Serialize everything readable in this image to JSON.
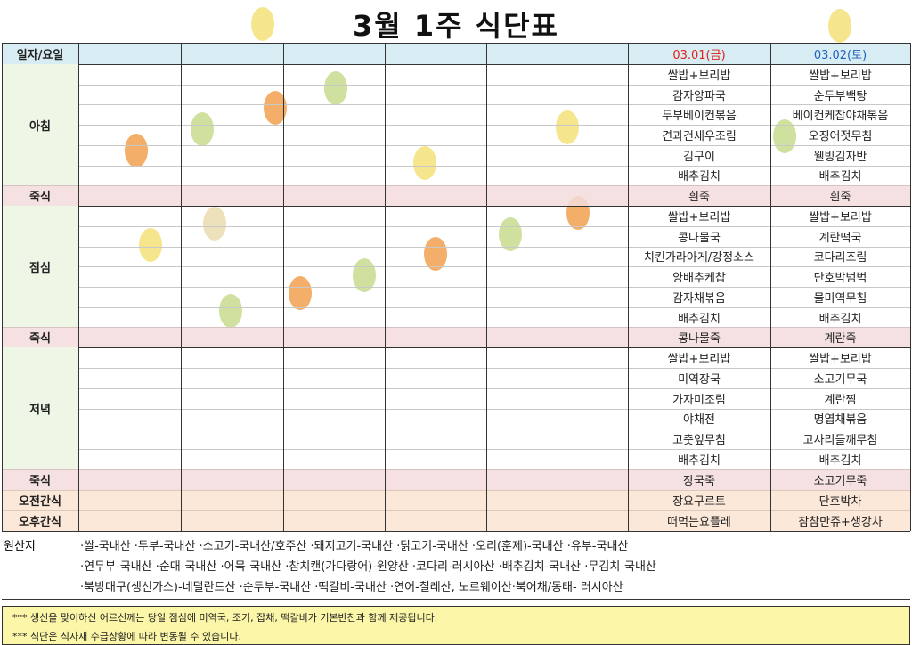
{
  "header": {
    "title": "3월 1주 식단표"
  },
  "table": {
    "date_label": "일자/요일",
    "days": [
      "03.01(금)",
      "03.02(토)"
    ],
    "sections": [
      {
        "label": "아침",
        "days": [
          [
            "쌀밥+보리밥",
            "감자양파국",
            "두부베이컨볶음",
            "견과건새우조림",
            "김구이",
            "배추김치"
          ],
          [
            "쌀밥+보리밥",
            "순두부백탕",
            "베이컨케찹야채볶음",
            "오징어젓무침",
            "웰빙김자반",
            "배추김치"
          ]
        ]
      },
      {
        "label": "죽식",
        "days": [
          "흰죽",
          "흰죽"
        ]
      },
      {
        "label": "점심",
        "days": [
          [
            "쌀밥+보리밥",
            "콩나물국",
            "치킨가라아게/강정소스",
            "양배추케찹",
            "감자채볶음",
            "배추김치"
          ],
          [
            "쌀밥+보리밥",
            "계란떡국",
            "코다리조림",
            "단호박범벅",
            "물미역무침",
            "배추김치"
          ]
        ]
      },
      {
        "label": "죽식",
        "days": [
          "콩나물죽",
          "계란죽"
        ]
      },
      {
        "label": "저녁",
        "days": [
          [
            "쌀밥+보리밥",
            "미역장국",
            "가자미조림",
            "야채전",
            "고춧잎무침",
            "배추김치"
          ],
          [
            "쌀밥+보리밥",
            "소고기무국",
            "계란찜",
            "명엽채볶음",
            "고사리들깨무침",
            "배추김치"
          ]
        ]
      },
      {
        "label": "죽식",
        "days": [
          "장국죽",
          "소고기무죽"
        ]
      },
      {
        "label": "오전간식",
        "days": [
          "장요구르트",
          "단호박차"
        ]
      },
      {
        "label": "오후간식",
        "days": [
          "떠먹는요플레",
          "참참만쥬+생강차"
        ]
      }
    ]
  },
  "origin": {
    "label": "원산지",
    "lines": [
      "·쌀-국내산 ·두부-국내산 ·소고기-국내산/호주산 ·돼지고기-국내산 ·닭고기-국내산 ·오리(훈제)-국내산 ·유부-국내산",
      "·연두부-국내산 ·순대-국내산 ·어묵-국내산 ·참치캔(가다랑어)-원양산 ·코다리-러시아산 ·배추김치-국내산 ·무김치-국내산",
      "·북방대구(생선가스)-네덜란드산 ·순두부-국내산 ·떡갈비-국내산 ·연어-칠레산, 노르웨이산·북어채/동태- 러시아산"
    ]
  },
  "notes": [
    "*** 생신을 맞이하신 어르신께는 당일 점심에 미역국, 조기, 잡채, 떡갈비가 기본반찬과 함께 제공됩니다.",
    "*** 식단은 식자재 수급상황에 따라 변동될 수 있습니다."
  ]
}
